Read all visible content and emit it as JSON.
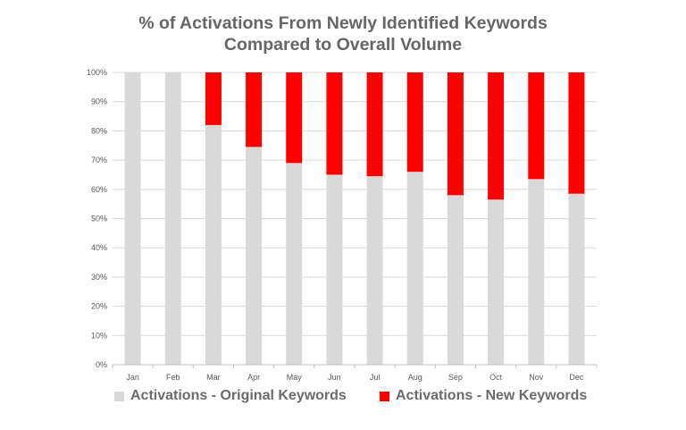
{
  "chart_data": {
    "type": "bar",
    "stacked": true,
    "percent_stacked": true,
    "title_lines": [
      "% of Activations From Newly Identified Keywords",
      "Compared to Overall Volume"
    ],
    "xlabel": "",
    "ylabel": "",
    "categories": [
      "Jan",
      "Feb",
      "Mar",
      "Apr",
      "May",
      "Jun",
      "Jul",
      "Aug",
      "Sep",
      "Oct",
      "Nov",
      "Dec"
    ],
    "series": [
      {
        "name": "Activations - Original Keywords",
        "color": "#d9d9d9",
        "values": [
          100,
          100,
          82,
          74.5,
          69,
          65,
          64.5,
          66,
          58,
          56.5,
          63.5,
          58.5
        ]
      },
      {
        "name": "Activations - New Keywords",
        "color": "#ff0000",
        "values": [
          0,
          0,
          18,
          25.5,
          31,
          35,
          35.5,
          34,
          42,
          43.5,
          36.5,
          41.5
        ]
      }
    ],
    "ylim": [
      0,
      100
    ],
    "yticks": [
      "0%",
      "10%",
      "20%",
      "30%",
      "40%",
      "50%",
      "60%",
      "70%",
      "80%",
      "90%",
      "100%"
    ],
    "grid": true,
    "legend_position": "bottom"
  }
}
